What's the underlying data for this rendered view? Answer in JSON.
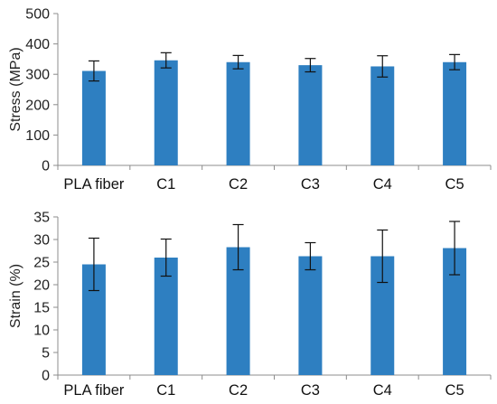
{
  "chart_data": [
    {
      "type": "bar",
      "title": "",
      "xlabel": "",
      "ylabel": "Stress (MPa)",
      "categories": [
        "PLA fiber",
        "C1",
        "C2",
        "C3",
        "C4",
        "C5"
      ],
      "values": [
        311,
        346,
        340,
        330,
        326,
        340
      ],
      "error": [
        33,
        25,
        22,
        22,
        35,
        25
      ],
      "ylim": [
        0,
        500
      ],
      "yticks": [
        0,
        100,
        200,
        300,
        400,
        500
      ],
      "bar_color": "#2e7fc1",
      "grid": false
    },
    {
      "type": "bar",
      "title": "",
      "xlabel": "",
      "ylabel": "Strain (%)",
      "categories": [
        "PLA fiber",
        "C1",
        "C2",
        "C3",
        "C4",
        "C5"
      ],
      "values": [
        24.5,
        26,
        28.3,
        26.3,
        26.3,
        28.1
      ],
      "error": [
        5.8,
        4.1,
        5.0,
        3.0,
        5.8,
        5.9
      ],
      "ylim": [
        0,
        35
      ],
      "yticks": [
        0,
        5,
        10,
        15,
        20,
        25,
        30,
        35
      ],
      "bar_color": "#2e7fc1",
      "grid": false
    }
  ]
}
